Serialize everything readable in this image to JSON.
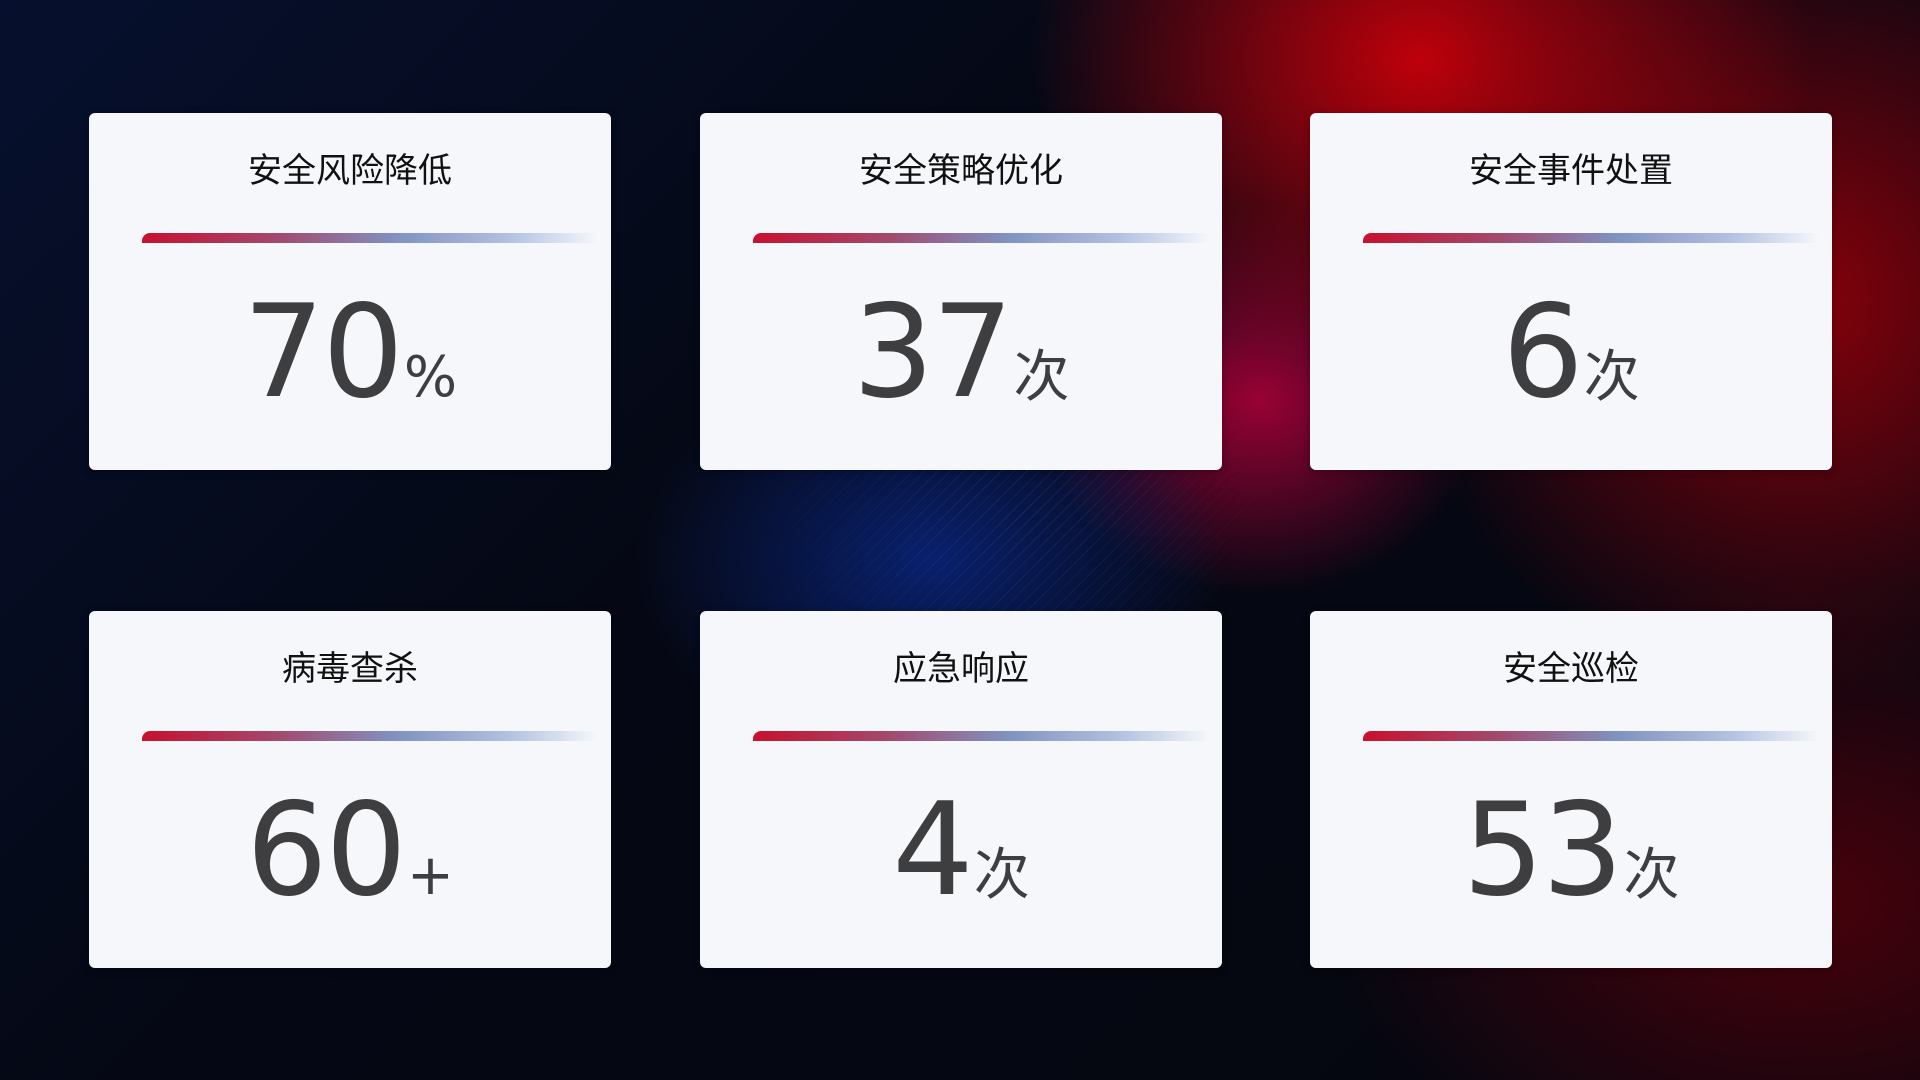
{
  "cards": [
    {
      "title": "安全风险降低",
      "value": "70",
      "unit": "%"
    },
    {
      "title": "安全策略优化",
      "value": "37",
      "unit": "次"
    },
    {
      "title": "安全事件处置",
      "value": "6",
      "unit": "次"
    },
    {
      "title": "病毒查杀",
      "value": "60",
      "unit": "+"
    },
    {
      "title": "应急响应",
      "value": "4",
      "unit": "次"
    },
    {
      "title": "安全巡检",
      "value": "53",
      "unit": "次"
    }
  ],
  "colors": {
    "accent_red": "#c8102e",
    "accent_blue": "#8090c0",
    "card_bg": "#f5f7fb",
    "value_text": "#3e3e40"
  }
}
